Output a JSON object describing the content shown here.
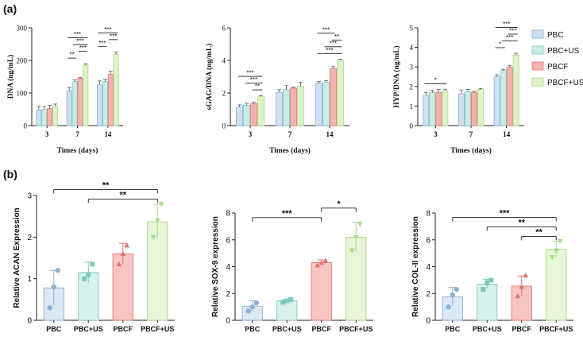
{
  "panel_labels": [
    "(a)",
    "(b)"
  ],
  "legend": {
    "entries": [
      "PBC",
      "PBC+US",
      "PBCF",
      "PBCF+US"
    ],
    "fill_colors": [
      "#cfe0f2",
      "#c9ece6",
      "#f6b3ae",
      "#def3c8"
    ],
    "stroke_colors": [
      "#8fb0d6",
      "#7fc8be",
      "#e07870",
      "#a9d88a"
    ]
  },
  "chart_data": [
    {
      "id": "dna",
      "type": "bar",
      "ylabel": "DNA (ng/mL)",
      "xlabel": "Times (days)",
      "categories": [
        "3",
        "7",
        "14"
      ],
      "ylim": [
        0,
        300
      ],
      "yticks": [
        "0",
        "100",
        "200",
        "300"
      ],
      "series": [
        {
          "name": "PBC",
          "values": [
            47,
            107,
            125
          ],
          "errors": [
            12,
            10,
            12
          ]
        },
        {
          "name": "PBC+US",
          "values": [
            50,
            135,
            135
          ],
          "errors": [
            8,
            5,
            8
          ]
        },
        {
          "name": "PBCF",
          "values": [
            52,
            145,
            157
          ],
          "errors": [
            10,
            3,
            10
          ]
        },
        {
          "name": "PBCF+US",
          "values": [
            60,
            186,
            218
          ],
          "errors": [
            6,
            4,
            8
          ]
        }
      ],
      "significance": [
        {
          "group": 1,
          "from": 0,
          "to": 1,
          "label": "**"
        },
        {
          "group": 1,
          "from": 2,
          "to": 3,
          "label": "***"
        },
        {
          "group": 1,
          "from": 1,
          "to": 3,
          "label": "***"
        },
        {
          "group": 1,
          "from": 0,
          "to": 3,
          "label": "***"
        },
        {
          "group": 2,
          "from": 0,
          "to": 1,
          "label": "***"
        },
        {
          "group": 2,
          "from": 2,
          "to": 3,
          "label": "***"
        },
        {
          "group": 2,
          "from": 0,
          "to": 3,
          "label": "***"
        }
      ]
    },
    {
      "id": "sgag",
      "type": "bar",
      "ylabel": "sGAG/DNA (ng/mL)",
      "xlabel": "Times (days)",
      "categories": [
        "3",
        "7",
        "14"
      ],
      "ylim": [
        0,
        6
      ],
      "yticks": [
        "0",
        "2",
        "4",
        "6"
      ],
      "series": [
        {
          "name": "PBC",
          "values": [
            1.15,
            2.05,
            2.6
          ],
          "errors": [
            0.12,
            0.15,
            0.1
          ]
        },
        {
          "name": "PBC+US",
          "values": [
            1.25,
            2.2,
            2.65
          ],
          "errors": [
            0.12,
            0.25,
            0.1
          ]
        },
        {
          "name": "PBCF",
          "values": [
            1.35,
            2.3,
            3.5
          ],
          "errors": [
            0.1,
            0.05,
            0.12
          ]
        },
        {
          "name": "PBCF+US",
          "values": [
            1.8,
            2.4,
            4.0
          ],
          "errors": [
            0.05,
            0.25,
            0.08
          ]
        }
      ],
      "significance": [
        {
          "group": 0,
          "from": 2,
          "to": 3,
          "label": "**"
        },
        {
          "group": 0,
          "from": 1,
          "to": 3,
          "label": "***"
        },
        {
          "group": 0,
          "from": 0,
          "to": 3,
          "label": "***"
        },
        {
          "group": 2,
          "from": 0,
          "to": 3,
          "label": "***"
        },
        {
          "group": 2,
          "from": 1,
          "to": 3,
          "label": "***"
        },
        {
          "group": 2,
          "from": 2,
          "to": 3,
          "label": "**"
        },
        {
          "group": 2,
          "from": 0,
          "to": 2,
          "label": "***"
        }
      ]
    },
    {
      "id": "hyp",
      "type": "bar",
      "ylabel": "HYP/DNA (ng/mL)",
      "xlabel": "Times (days)",
      "categories": [
        "3",
        "7",
        "14"
      ],
      "ylim": [
        0,
        5
      ],
      "yticks": [
        "0",
        "1",
        "2",
        "3",
        "4",
        "5"
      ],
      "series": [
        {
          "name": "PBC",
          "values": [
            1.55,
            1.62,
            2.5
          ],
          "errors": [
            0.15,
            0.2,
            0.1
          ]
        },
        {
          "name": "PBC+US",
          "values": [
            1.68,
            1.75,
            2.82
          ],
          "errors": [
            0.12,
            0.1,
            0.06
          ]
        },
        {
          "name": "PBCF",
          "values": [
            1.7,
            1.7,
            2.98
          ],
          "errors": [
            0.15,
            0.05,
            0.1
          ]
        },
        {
          "name": "PBCF+US",
          "values": [
            1.78,
            1.85,
            3.6
          ],
          "errors": [
            0.08,
            0.05,
            0.1
          ]
        }
      ],
      "significance": [
        {
          "group": 0,
          "from": 0,
          "to": 3,
          "label": "*"
        },
        {
          "group": 2,
          "from": 0,
          "to": 1,
          "label": "*"
        },
        {
          "group": 2,
          "from": 1,
          "to": 3,
          "label": "***"
        },
        {
          "group": 2,
          "from": 2,
          "to": 3,
          "label": "***"
        },
        {
          "group": 2,
          "from": 0,
          "to": 3,
          "label": "***"
        }
      ]
    },
    {
      "id": "acan",
      "type": "bar",
      "ylabel": "Relative ACAN Expression",
      "categories": [
        "PBC",
        "PBC+US",
        "PBCF",
        "PBCF+US"
      ],
      "ylim": [
        0,
        3
      ],
      "yticks": [
        "0",
        "1",
        "2",
        "3"
      ],
      "values": [
        0.78,
        1.15,
        1.6,
        2.37
      ],
      "errors": [
        0.42,
        0.25,
        0.25,
        0.42
      ],
      "points": [
        [
          0.3,
          0.8,
          1.2
        ],
        [
          1.0,
          1.1,
          1.35
        ],
        [
          1.35,
          1.6,
          1.8
        ],
        [
          2.0,
          2.4,
          2.8
        ]
      ],
      "significance": [
        {
          "from": 1,
          "to": 3,
          "label": "**"
        },
        {
          "from": 0,
          "to": 3,
          "label": "**"
        }
      ]
    },
    {
      "id": "sox9",
      "type": "bar",
      "ylabel": "Relative SOX-9 expression",
      "categories": [
        "PBC",
        "PBC+US",
        "PBCF",
        "PBCF+US"
      ],
      "ylim": [
        0,
        8
      ],
      "yticks": [
        "0",
        "2",
        "4",
        "6",
        "8"
      ],
      "values": [
        1.05,
        1.45,
        4.3,
        6.2
      ],
      "errors": [
        0.4,
        0.12,
        0.2,
        1.1
      ],
      "points": [
        [
          0.7,
          1.0,
          1.3
        ],
        [
          1.35,
          1.45,
          1.55
        ],
        [
          4.1,
          4.3,
          4.45
        ],
        [
          5.2,
          6.2,
          7.2
        ]
      ],
      "significance": [
        {
          "from": 0,
          "to": 2,
          "label": "***"
        },
        {
          "from": 2,
          "to": 3,
          "label": "*"
        }
      ]
    },
    {
      "id": "col2",
      "type": "bar",
      "ylabel": "Relative COL-II expression",
      "categories": [
        "PBC",
        "PBC+US",
        "PBCF",
        "PBCF+US"
      ],
      "ylim": [
        0,
        8
      ],
      "yticks": [
        "0",
        "2",
        "4",
        "6",
        "8"
      ],
      "values": [
        1.75,
        2.7,
        2.55,
        5.3
      ],
      "errors": [
        0.7,
        0.35,
        0.75,
        0.6
      ],
      "points": [
        [
          1.0,
          1.9,
          2.3
        ],
        [
          2.3,
          2.8,
          3.0
        ],
        [
          1.8,
          2.5,
          3.35
        ],
        [
          4.7,
          5.2,
          5.9
        ]
      ],
      "significance": [
        {
          "from": 2,
          "to": 3,
          "label": "**"
        },
        {
          "from": 1,
          "to": 3,
          "label": "**"
        },
        {
          "from": 0,
          "to": 3,
          "label": "***"
        }
      ]
    }
  ]
}
